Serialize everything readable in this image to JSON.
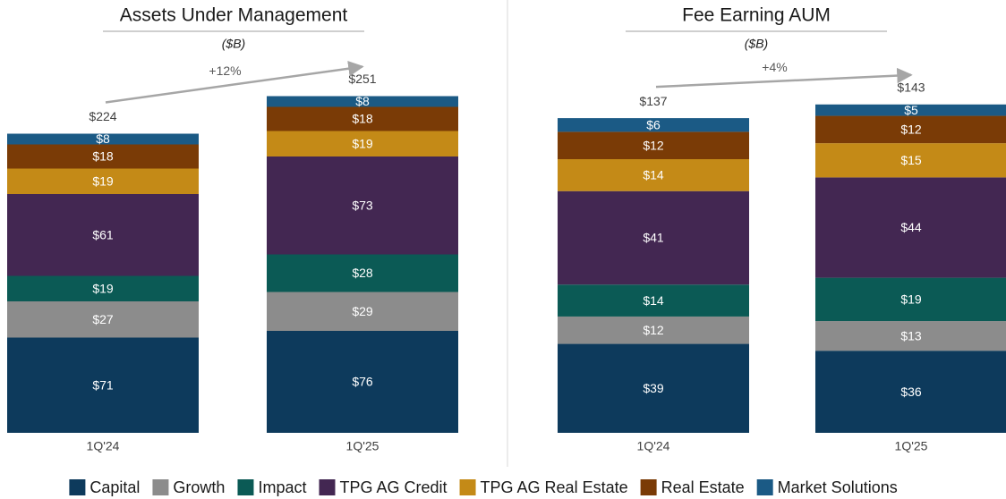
{
  "chart_data": [
    {
      "type": "stacked-bar",
      "title": "Assets Under Management",
      "subtitle": "($B)",
      "categories": [
        "1Q'24",
        "1Q'25"
      ],
      "series": [
        {
          "name": "Capital",
          "color": "#0d3a5c",
          "values": [
            71,
            76
          ],
          "value_labels": [
            "$71",
            "$76"
          ]
        },
        {
          "name": "Growth",
          "color": "#8c8c8c",
          "values": [
            27,
            29
          ],
          "value_labels": [
            "$27",
            "$29"
          ]
        },
        {
          "name": "Impact",
          "color": "#0b5a55",
          "values": [
            19,
            28
          ],
          "value_labels": [
            "$19",
            "$28"
          ]
        },
        {
          "name": "TPG AG Credit",
          "color": "#432752",
          "values": [
            61,
            73
          ],
          "value_labels": [
            "$61",
            "$73"
          ]
        },
        {
          "name": "TPG AG Real Estate",
          "color": "#c48a17",
          "values": [
            19,
            19
          ],
          "value_labels": [
            "$19",
            "$19"
          ]
        },
        {
          "name": "Real Estate",
          "color": "#7a3b06",
          "values": [
            18,
            18
          ],
          "value_labels": [
            "$18",
            "$18"
          ]
        },
        {
          "name": "Market Solutions",
          "color": "#1b5a85",
          "values": [
            8,
            8
          ],
          "value_labels": [
            "$8",
            "$8"
          ]
        }
      ],
      "totals": [
        224,
        251
      ],
      "total_labels": [
        "$224",
        "$251"
      ],
      "annotation": "+12%"
    },
    {
      "type": "stacked-bar",
      "title": "Fee Earning AUM",
      "subtitle": "($B)",
      "categories": [
        "1Q'24",
        "1Q'25"
      ],
      "series": [
        {
          "color": "#0d3a5c",
          "values": [
            39,
            36
          ],
          "value_labels": [
            "$39",
            "$36"
          ]
        },
        {
          "color": "#8c8c8c",
          "values": [
            12,
            13
          ],
          "value_labels": [
            "$12",
            "$13"
          ]
        },
        {
          "color": "#0b5a55",
          "values": [
            14,
            19
          ],
          "value_labels": [
            "$14",
            "$19"
          ]
        },
        {
          "color": "#432752",
          "values": [
            41,
            44
          ],
          "value_labels": [
            "$41",
            "$44"
          ]
        },
        {
          "color": "#c48a17",
          "values": [
            14,
            15
          ],
          "value_labels": [
            "$14",
            "$15"
          ]
        },
        {
          "color": "#7a3b06",
          "values": [
            12,
            12
          ],
          "value_labels": [
            "$12",
            "$12"
          ]
        },
        {
          "color": "#1b5a85",
          "values": [
            6,
            5
          ],
          "value_labels": [
            "$6",
            "$5"
          ]
        }
      ],
      "totals": [
        137,
        143
      ],
      "total_labels": [
        "$137",
        "$143"
      ],
      "annotation": "+4%"
    }
  ]
}
